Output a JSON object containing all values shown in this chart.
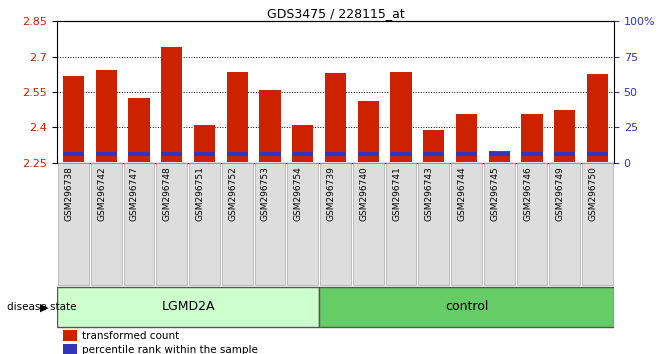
{
  "title": "GDS3475 / 228115_at",
  "samples": [
    "GSM296738",
    "GSM296742",
    "GSM296747",
    "GSM296748",
    "GSM296751",
    "GSM296752",
    "GSM296753",
    "GSM296754",
    "GSM296739",
    "GSM296740",
    "GSM296741",
    "GSM296743",
    "GSM296744",
    "GSM296745",
    "GSM296746",
    "GSM296749",
    "GSM296750"
  ],
  "red_values": [
    2.62,
    2.645,
    2.525,
    2.74,
    2.41,
    2.635,
    2.56,
    2.41,
    2.63,
    2.51,
    2.635,
    2.39,
    2.455,
    2.3,
    2.455,
    2.475,
    2.625
  ],
  "blue_top": [
    2.298,
    2.296,
    2.296,
    2.296,
    2.298,
    2.296,
    2.296,
    2.298,
    2.296,
    2.298,
    2.296,
    2.296,
    2.296,
    2.296,
    2.296,
    2.296,
    2.298
  ],
  "base": 2.255,
  "blue_base": 2.278,
  "ymin": 2.25,
  "ymax": 2.85,
  "yticks_left": [
    2.25,
    2.4,
    2.55,
    2.7,
    2.85
  ],
  "yticks_right": [
    0,
    25,
    50,
    75,
    100
  ],
  "groups": [
    {
      "label": "LGMD2A",
      "start": 0,
      "end": 8,
      "color": "#ccffcc"
    },
    {
      "label": "control",
      "start": 8,
      "end": 17,
      "color": "#66cc66"
    }
  ],
  "bar_color": "#cc2200",
  "blue_color": "#3333bb",
  "bar_width": 0.65,
  "tick_label_color_left": "#cc2200",
  "tick_label_color_right": "#3333bb",
  "legend_items": [
    {
      "label": "transformed count",
      "color": "#cc2200"
    },
    {
      "label": "percentile rank within the sample",
      "color": "#3333bb"
    }
  ],
  "disease_state_label": "disease state"
}
